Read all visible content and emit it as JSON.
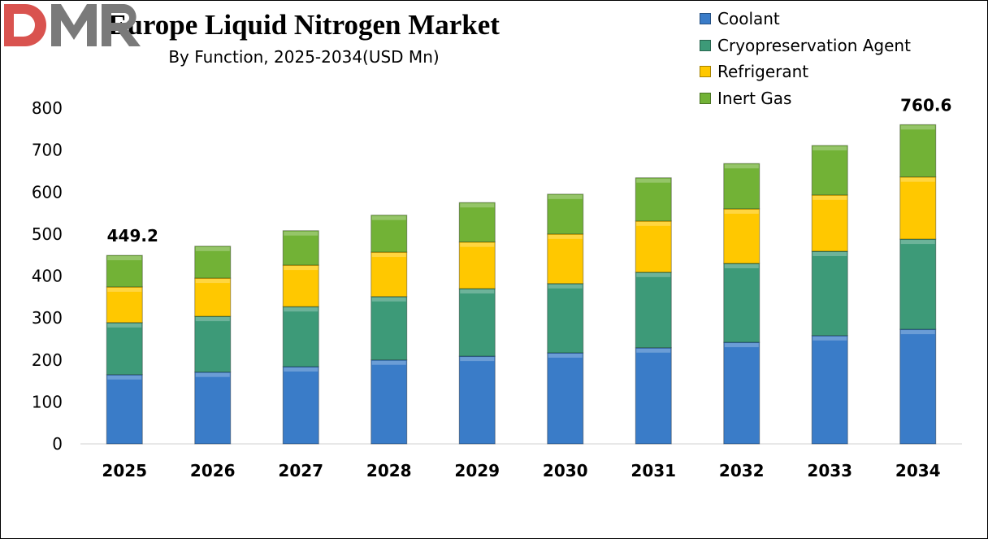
{
  "chart_data": {
    "type": "bar",
    "stacked": true,
    "title": "Europe Liquid Nitrogen Market",
    "subtitle": "By Function, 2025-2034(USD Mn)",
    "categories": [
      "2025",
      "2026",
      "2027",
      "2028",
      "2029",
      "2030",
      "2031",
      "2032",
      "2033",
      "2034"
    ],
    "series": [
      {
        "name": "Coolant",
        "color": "#3a7cc8",
        "values": [
          165,
          171,
          184,
          200,
          209,
          217,
          229,
          242,
          258,
          273
        ]
      },
      {
        "name": "Cryopreservation Agent",
        "color": "#3d9a78",
        "values": [
          124,
          133,
          143,
          151,
          161,
          165,
          180,
          188,
          201,
          215
        ]
      },
      {
        "name": "Refrigerant",
        "color": "#ffc800",
        "values": [
          85,
          91,
          99,
          106,
          111,
          118,
          122,
          130,
          134,
          148
        ]
      },
      {
        "name": "Inert Gas",
        "color": "#72b236",
        "values": [
          75.2,
          76,
          82,
          88,
          94,
          95,
          103,
          108,
          118,
          124.6
        ]
      }
    ],
    "annotations": [
      {
        "category": "2025",
        "label": "449.2"
      },
      {
        "category": "2034",
        "label": "760.6"
      }
    ],
    "ylim": [
      0,
      800
    ],
    "yticks": [
      "0",
      "100",
      "200",
      "300",
      "400",
      "500",
      "600",
      "700",
      "800"
    ],
    "grid": false,
    "legend_position": "top-right"
  },
  "logo": {
    "text": "DMR",
    "colors": [
      "#d9534f",
      "#7a7a7a"
    ]
  }
}
